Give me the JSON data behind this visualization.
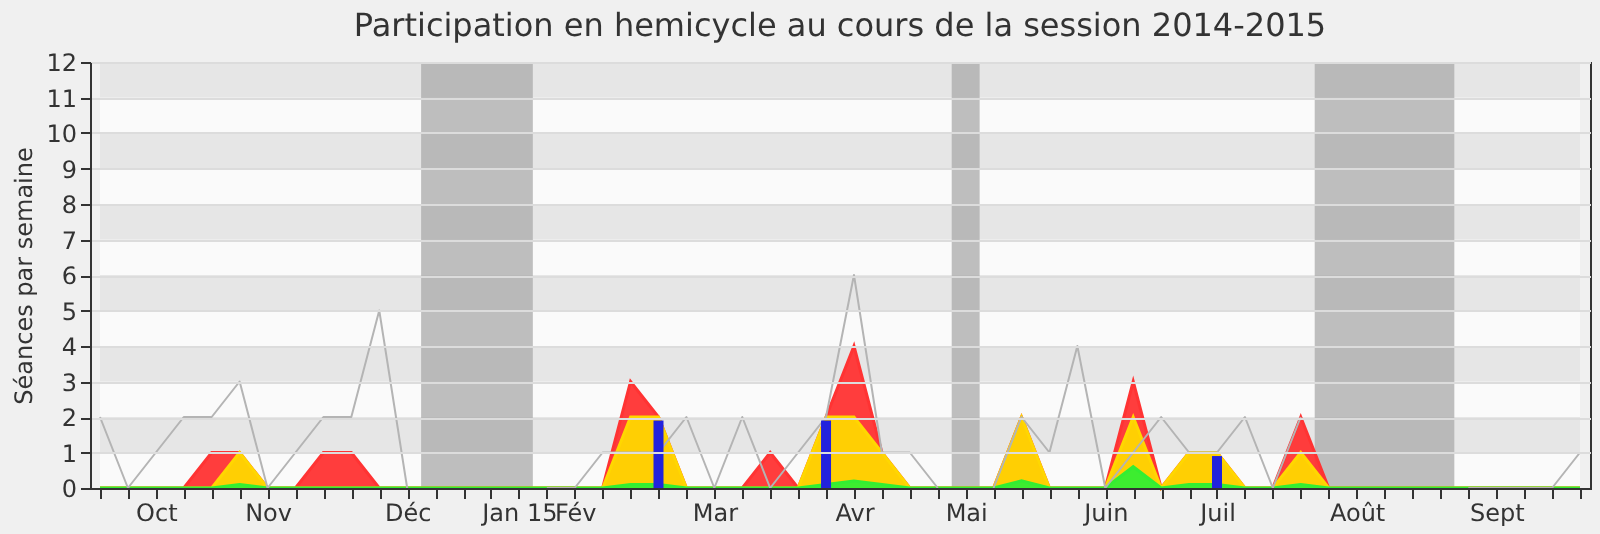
{
  "chart_data": {
    "type": "area",
    "title": "Participation en hemicycle au cours de la session 2014-2015",
    "ylabel": "Séances par semaine",
    "categories": [
      null,
      null,
      "Oct",
      null,
      null,
      null,
      "Nov",
      null,
      null,
      null,
      null,
      "Déc",
      null,
      null,
      null,
      "Jan 15",
      null,
      "Fév",
      null,
      null,
      null,
      null,
      "Mar",
      null,
      null,
      null,
      null,
      "Avr",
      null,
      null,
      null,
      "Mai",
      null,
      null,
      null,
      null,
      "Juin",
      null,
      null,
      null,
      "Juil",
      null,
      null,
      null,
      null,
      "Août",
      null,
      null,
      null,
      null,
      "Sept",
      null,
      null,
      null
    ],
    "series": [
      {
        "type": "line",
        "color": "#b4b4b4",
        "values": [
          2,
          0,
          1,
          2,
          2,
          3,
          0,
          1,
          2,
          2,
          5,
          0,
          null,
          null,
          null,
          null,
          0,
          0,
          1,
          1,
          1,
          2,
          0,
          2,
          0,
          1,
          2,
          6,
          1,
          1,
          0,
          null,
          0,
          2,
          1,
          4,
          0,
          1,
          2,
          1,
          1,
          2,
          0,
          2,
          null,
          null,
          null,
          null,
          null,
          0,
          0,
          0,
          0,
          1
        ]
      },
      {
        "color": "#ff3333",
        "values": [
          0,
          0,
          0,
          0,
          1,
          1,
          0,
          0,
          1,
          1,
          0,
          0,
          0,
          0,
          0,
          0,
          0,
          0,
          0,
          3,
          2,
          0,
          0,
          0,
          1,
          0,
          2,
          4,
          1,
          0,
          0,
          0,
          0,
          2,
          0,
          0,
          0,
          3,
          0,
          1,
          1,
          0,
          0,
          2,
          0,
          0,
          0,
          0,
          0,
          0,
          0,
          0,
          0,
          0
        ]
      },
      {
        "color": "#ffd700",
        "values": [
          0,
          0,
          0,
          0,
          0,
          1,
          0,
          0,
          0,
          0,
          0,
          0,
          0,
          0,
          0,
          0,
          0,
          0,
          0,
          2,
          2,
          0,
          0,
          0,
          0,
          0,
          2,
          2,
          1,
          0,
          0,
          0,
          0,
          2,
          0,
          0,
          0,
          2,
          0,
          1,
          1,
          0,
          0,
          1,
          0,
          0,
          0,
          0,
          0,
          0,
          0,
          0,
          0,
          0
        ]
      },
      {
        "color": "#33ee33",
        "values": [
          0,
          0,
          0,
          0,
          0,
          0.1,
          0,
          0,
          0,
          0,
          0,
          0,
          0,
          0,
          0,
          0,
          0,
          0,
          0,
          0.1,
          0.1,
          0,
          0,
          0,
          0,
          0,
          0.1,
          0.2,
          0.1,
          0,
          0,
          0,
          0,
          0.2,
          0,
          0,
          0,
          0.6,
          0,
          0.1,
          0.1,
          0,
          0,
          0.1,
          0,
          0,
          0,
          0,
          0,
          0,
          0,
          0,
          0,
          0
        ]
      },
      {
        "type": "bar",
        "color": "#2222dd",
        "values": [
          null,
          null,
          null,
          null,
          null,
          null,
          null,
          null,
          null,
          null,
          null,
          null,
          null,
          null,
          null,
          null,
          null,
          null,
          null,
          null,
          1.9,
          null,
          null,
          null,
          null,
          null,
          1.9,
          null,
          null,
          null,
          null,
          null,
          null,
          null,
          null,
          null,
          null,
          null,
          null,
          null,
          0.9,
          null,
          null,
          null,
          null,
          null,
          null,
          null,
          null,
          null,
          null,
          null,
          null,
          null
        ]
      }
    ],
    "ylim": [
      0,
      12
    ],
    "yticks": [
      0,
      1,
      2,
      3,
      4,
      5,
      6,
      7,
      8,
      9,
      10,
      11,
      12
    ],
    "grid": "y"
  }
}
